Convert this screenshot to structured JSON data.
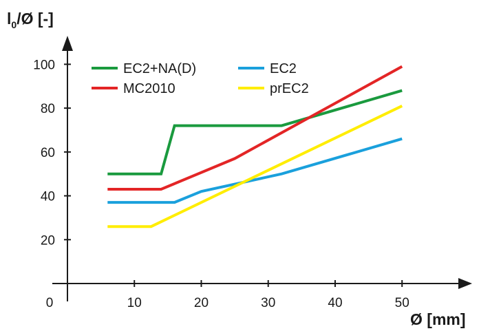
{
  "chart_data": {
    "type": "line",
    "title": "",
    "xlabel": "Ø [mm]",
    "ylabel": {
      "main": "l",
      "sub": "0",
      "rest": "/Ø [-]"
    },
    "origin_label": "0",
    "xlim": [
      0,
      58
    ],
    "ylim": [
      0,
      113
    ],
    "x_ticks": [
      10,
      20,
      30,
      40,
      50
    ],
    "y_ticks": [
      20,
      40,
      60,
      80,
      100
    ],
    "grid": false,
    "legend_position": "top-left",
    "series": [
      {
        "name": "EC2+NA(D)",
        "color": "#1a9a3e",
        "points": [
          [
            6,
            50
          ],
          [
            14,
            50
          ],
          [
            16,
            72
          ],
          [
            32,
            72
          ],
          [
            50,
            88
          ]
        ]
      },
      {
        "name": "MC2010",
        "color": "#e32526",
        "points": [
          [
            6,
            43
          ],
          [
            14,
            43
          ],
          [
            25,
            57
          ],
          [
            50,
            99
          ]
        ]
      },
      {
        "name": "EC2",
        "color": "#1aa0dc",
        "points": [
          [
            6,
            37
          ],
          [
            16,
            37
          ],
          [
            20,
            42
          ],
          [
            32,
            50
          ],
          [
            50,
            66
          ]
        ]
      },
      {
        "name": "prEC2",
        "color": "#ffed00",
        "points": [
          [
            6,
            26
          ],
          [
            12.5,
            26
          ],
          [
            50,
            81
          ]
        ]
      }
    ]
  }
}
